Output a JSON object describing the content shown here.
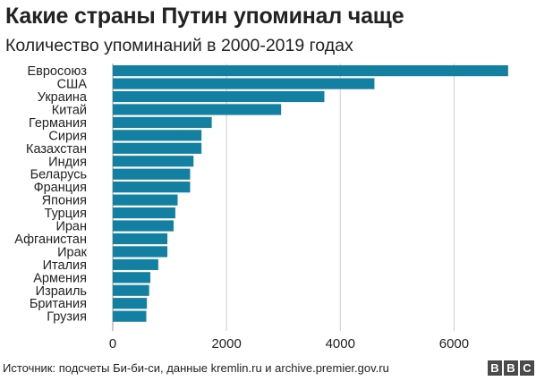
{
  "header": {
    "title": "Какие страны Путин упоминал чаще",
    "subtitle": "Количество упоминаний в 2000-2019 годах"
  },
  "chart_data": {
    "type": "bar",
    "orientation": "horizontal",
    "title": "Какие страны Путин упоминал чаще",
    "subtitle": "Количество упоминаний в 2000-2019 годах",
    "categories": [
      "Евросоюз",
      "США",
      "Украина",
      "Китай",
      "Германия",
      "Сирия",
      "Казахстан",
      "Индия",
      "Беларусь",
      "Франция",
      "Япония",
      "Турция",
      "Иран",
      "Афганистан",
      "Ирак",
      "Италия",
      "Армения",
      "Израиль",
      "Британия",
      "Грузия"
    ],
    "values": [
      6950,
      4600,
      3720,
      2960,
      1740,
      1560,
      1560,
      1420,
      1360,
      1360,
      1140,
      1100,
      1070,
      960,
      960,
      800,
      660,
      640,
      600,
      590
    ],
    "xlim": [
      0,
      7000
    ],
    "xticks": [
      "0",
      "2000",
      "4000",
      "6000"
    ],
    "grid": true,
    "bar_color": "#1380a1"
  },
  "footer": {
    "source": "Источник: подсчеты Би-би-си, данные kremlin.ru и archive.premier.gov.ru",
    "logo_letters": [
      "B",
      "B",
      "C"
    ]
  }
}
